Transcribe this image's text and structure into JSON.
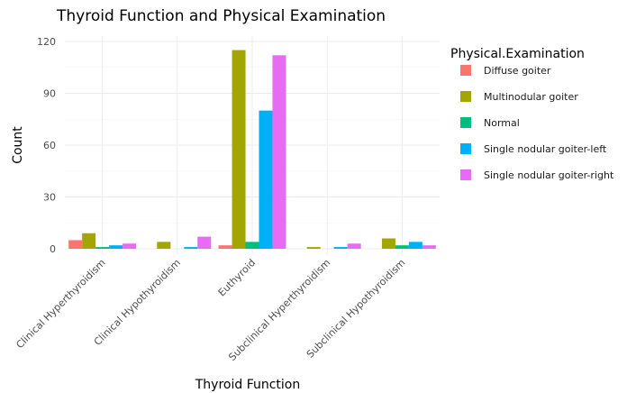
{
  "chart_data": {
    "type": "bar",
    "title": "Thyroid Function and Physical Examination",
    "xlabel": "Thyroid Function",
    "ylabel": "Count",
    "ylim": [
      0,
      120
    ],
    "yticks": [
      0,
      30,
      60,
      90,
      120
    ],
    "grid": true,
    "legend_position": "right",
    "legend_title": "Physical.Examination",
    "categories": [
      "Clinical Hyperthyroidism",
      "Clinical Hypothyroidism",
      "Euthyroid",
      "Subclinical Hyperthyroidism",
      "Subclinical Hypothyroidism"
    ],
    "series": [
      {
        "name": "Diffuse goiter",
        "color": "#F8766D",
        "values": [
          5,
          0,
          2,
          0,
          0
        ]
      },
      {
        "name": "Multinodular goiter",
        "color": "#A3A500",
        "values": [
          9,
          4,
          115,
          1,
          6
        ]
      },
      {
        "name": "Normal",
        "color": "#00BF7D",
        "values": [
          1,
          0,
          4,
          0,
          2
        ]
      },
      {
        "name": "Single nodular goiter-left",
        "color": "#00B0F6",
        "values": [
          2,
          1,
          80,
          1,
          4
        ]
      },
      {
        "name": "Single nodular goiter-right",
        "color": "#E76BF3",
        "values": [
          3,
          7,
          112,
          3,
          2
        ]
      }
    ]
  }
}
